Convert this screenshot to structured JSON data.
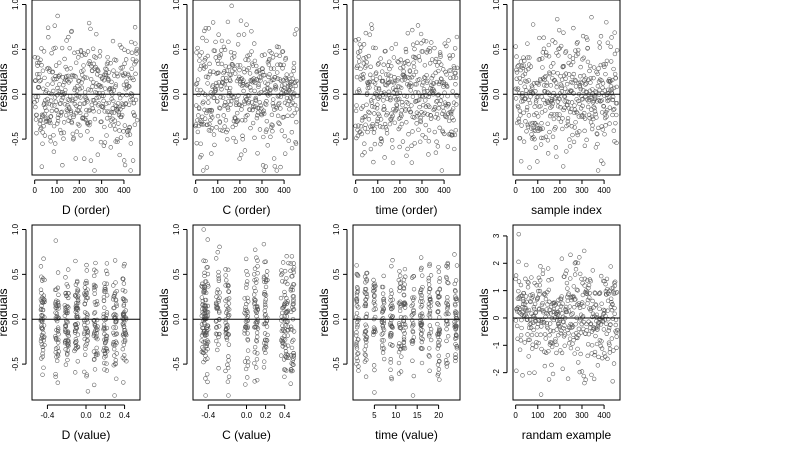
{
  "chart_data": [
    {
      "type": "scatter",
      "xlabel": "D (order)",
      "ylabel": "residuals",
      "xlim": [
        -12,
        472
      ],
      "ylim": [
        -0.9,
        1.05
      ],
      "xticks": [
        0,
        100,
        200,
        300,
        400
      ],
      "yticks": [
        -0.5,
        0.0,
        0.5,
        1.0
      ],
      "ytick_labels": [
        "-0.5",
        "0.0",
        "0.5",
        "1.0"
      ],
      "hline": 0,
      "generator": {
        "kind": "order",
        "n": 460,
        "seed": 11,
        "sd": 0.32,
        "ymin": -0.85,
        "ymax": 1.0
      }
    },
    {
      "type": "scatter",
      "xlabel": "C (order)",
      "ylabel": "residuals",
      "xlim": [
        -12,
        472
      ],
      "ylim": [
        -0.9,
        1.05
      ],
      "xticks": [
        0,
        100,
        200,
        300,
        400
      ],
      "yticks": [
        -0.5,
        0.0,
        0.5,
        1.0
      ],
      "ytick_labels": [
        "-0.5",
        "0.0",
        "0.5",
        "1.0"
      ],
      "hline": 0,
      "generator": {
        "kind": "order",
        "n": 460,
        "seed": 23,
        "sd": 0.32,
        "ymin": -0.85,
        "ymax": 1.0
      }
    },
    {
      "type": "scatter",
      "xlabel": "time (order)",
      "ylabel": "residuals",
      "xlim": [
        -12,
        472
      ],
      "ylim": [
        -0.9,
        1.05
      ],
      "xticks": [
        0,
        100,
        200,
        300,
        400
      ],
      "yticks": [
        -0.5,
        0.0,
        0.5,
        1.0
      ],
      "ytick_labels": [
        "-0.5",
        "0.0",
        "0.5",
        "1.0"
      ],
      "hline": 0,
      "generator": {
        "kind": "order",
        "n": 460,
        "seed": 37,
        "sd": 0.32,
        "ymin": -0.85,
        "ymax": 1.0
      }
    },
    {
      "type": "scatter",
      "xlabel": "sample index",
      "ylabel": "residuals",
      "xlim": [
        -12,
        472
      ],
      "ylim": [
        -0.9,
        1.05
      ],
      "xticks": [
        0,
        100,
        200,
        300,
        400
      ],
      "yticks": [
        -0.5,
        0.0,
        0.5,
        1.0
      ],
      "ytick_labels": [
        "-0.5",
        "0.0",
        "0.5",
        "1.0"
      ],
      "hline": 0,
      "generator": {
        "kind": "order",
        "n": 460,
        "seed": 41,
        "sd": 0.32,
        "ymin": -0.85,
        "ymax": 1.0
      }
    },
    {
      "type": "scatter",
      "xlabel": "D (value)",
      "ylabel": "residuals",
      "xlim": [
        -0.56,
        0.56
      ],
      "ylim": [
        -0.9,
        1.05
      ],
      "xticks": [
        -0.4,
        0.0,
        0.2,
        0.4
      ],
      "xtick_labels": [
        "-0.4",
        "0.0",
        "0.2",
        "0.4"
      ],
      "yticks": [
        -0.5,
        0.0,
        0.5,
        1.0
      ],
      "ytick_labels": [
        "-0.5",
        "0.0",
        "0.5",
        "1.0"
      ],
      "hline": 0,
      "generator": {
        "kind": "value",
        "n": 460,
        "seed": 53,
        "sd": 0.32,
        "ymin": -0.85,
        "ymax": 1.0,
        "columns": [
          -0.45,
          -0.3,
          -0.2,
          -0.1,
          0.0,
          0.1,
          0.2,
          0.3,
          0.4
        ],
        "jitter": 0.02
      }
    },
    {
      "type": "scatter",
      "xlabel": "C (value)",
      "ylabel": "residuals",
      "xlim": [
        -0.56,
        0.56
      ],
      "ylim": [
        -0.9,
        1.05
      ],
      "xticks": [
        -0.4,
        0.0,
        0.2,
        0.4
      ],
      "xtick_labels": [
        "-0.4",
        "0.0",
        "0.2",
        "0.4"
      ],
      "yticks": [
        -0.5,
        0.0,
        0.5,
        1.0
      ],
      "ytick_labels": [
        "-0.5",
        "0.0",
        "0.5",
        "1.0"
      ],
      "hline": 0,
      "generator": {
        "kind": "value",
        "n": 460,
        "seed": 67,
        "sd": 0.32,
        "ymin": -0.85,
        "ymax": 1.0,
        "columns": [
          -0.45,
          -0.42,
          -0.3,
          -0.2,
          0.0,
          0.1,
          0.2,
          0.38,
          0.42,
          0.48
        ],
        "jitter": 0.02
      }
    },
    {
      "type": "scatter",
      "xlabel": "time (value)",
      "ylabel": "residuals",
      "xlim": [
        0,
        25
      ],
      "ylim": [
        -0.9,
        1.05
      ],
      "xticks": [
        5,
        10,
        15,
        20
      ],
      "yticks": [
        -0.5,
        0.0,
        0.5,
        1.0
      ],
      "ytick_labels": [
        "-0.5",
        "0.0",
        "0.5",
        "1.0"
      ],
      "hline": 0,
      "generator": {
        "kind": "value",
        "n": 460,
        "seed": 79,
        "sd": 0.32,
        "ymin": -0.85,
        "ymax": 1.0,
        "columns": [
          1,
          3,
          5,
          7,
          9,
          11,
          12,
          14,
          16,
          18,
          20,
          22,
          24
        ],
        "jitter": 0.3
      }
    },
    {
      "type": "scatter",
      "xlabel": "randam example",
      "ylabel": "residuals",
      "xlim": [
        -12,
        472
      ],
      "ylim": [
        -3.0,
        3.4
      ],
      "xticks": [
        0,
        100,
        200,
        300,
        400
      ],
      "yticks": [
        -2,
        -1,
        0,
        1,
        2,
        3
      ],
      "hline": 0,
      "generator": {
        "kind": "order",
        "n": 460,
        "seed": 97,
        "sd": 1.0,
        "ymin": -2.8,
        "ymax": 3.1
      }
    }
  ]
}
